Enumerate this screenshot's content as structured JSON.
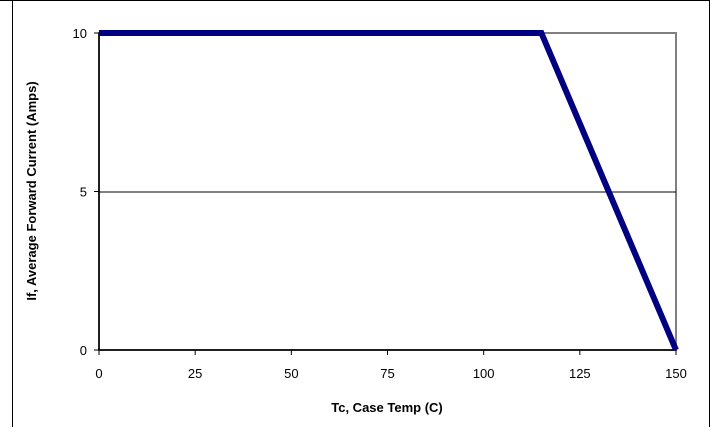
{
  "chart_data": {
    "type": "line",
    "title": "",
    "xlabel": "Tc, Case Temp (C)",
    "ylabel": "If, Average Forward Current (Amps)",
    "xlim": [
      0,
      150
    ],
    "ylim": [
      0,
      10
    ],
    "x_ticks": [
      "0",
      "25",
      "50",
      "75",
      "100",
      "125",
      "150"
    ],
    "y_ticks": [
      "0",
      "5",
      "10"
    ],
    "grid": "horizontal major",
    "legend": "none",
    "series": [
      {
        "x": [
          0,
          115,
          150
        ],
        "y": [
          10,
          10,
          0
        ],
        "color": "#000080"
      }
    ]
  }
}
